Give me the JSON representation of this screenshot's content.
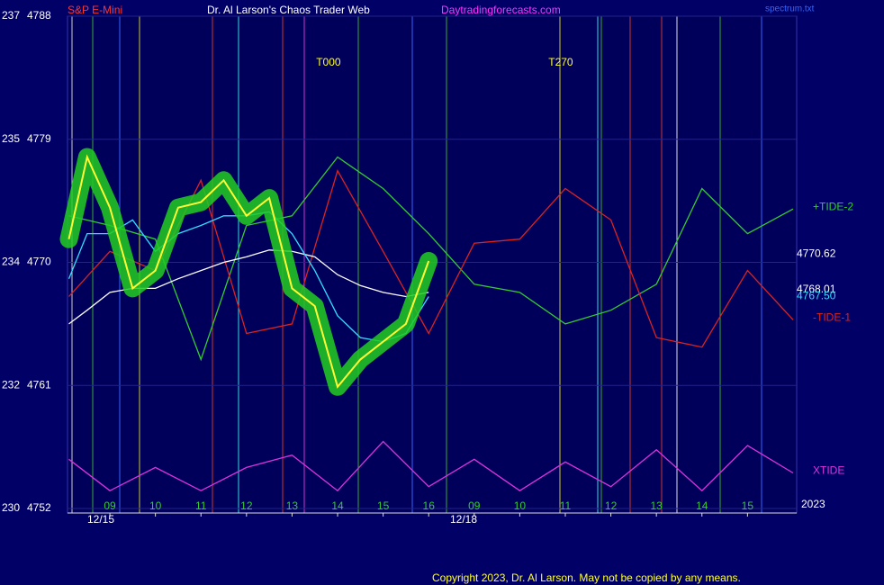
{
  "chart_data": {
    "type": "line",
    "title": "Dr. Al Larson's Chaos Trader Web",
    "instrument": "S&P E-Mini",
    "site": "Daytradingforecasts.com",
    "source_file": "spectrum.txt",
    "copyright": "Copyright 2023, Dr. Al Larson. May not be copied by any means.",
    "xlim": [
      8.07,
      24.08
    ],
    "xticks": [
      {
        "value": 9,
        "label": "09"
      },
      10,
      11,
      12,
      13,
      14,
      15,
      16,
      {
        "value": 17,
        "label": "09"
      },
      {
        "value": 18,
        "label": "10"
      },
      {
        "value": 19,
        "label": "11"
      },
      {
        "value": 20,
        "label": "12"
      },
      {
        "value": 21,
        "label": "13"
      },
      {
        "value": 22,
        "label": "14"
      },
      {
        "value": 23,
        "label": "15"
      }
    ],
    "date_labels": [
      "12/15",
      "12/18",
      "2023"
    ],
    "ylim": [
      4752,
      4788
    ],
    "yticks": [
      4752,
      4761,
      4770,
      4779,
      4788
    ],
    "y2lim": [
      230,
      237
    ],
    "y2ticks": [
      230,
      {
        "value": 231.75,
        "label": "232"
      },
      {
        "value": 233.5,
        "label": "234"
      },
      {
        "value": 235.25,
        "label": "235"
      },
      237
    ],
    "grid": true,
    "time_markers": [
      {
        "value": 13.8,
        "label": "T000"
      },
      {
        "value": 18.9,
        "label": "T270"
      }
    ],
    "series": [
      {
        "color": "#33cc33",
        "values": [
          4773.4,
          4772.7,
          4771.7,
          4762.9,
          4772.7,
          4773.4,
          4777.7,
          4775.4,
          4772.1,
          4768.4,
          4767.8,
          4765.5,
          4766.5,
          4768.4,
          4775.4,
          4772.1,
          4773.9
        ],
        "x": [
          8.1,
          9,
          10,
          11,
          12,
          13,
          14,
          15,
          16,
          17,
          18,
          19,
          20,
          21,
          22,
          23,
          24
        ],
        "name": "+TIDE-2"
      },
      {
        "color": "#dd2222",
        "values": [
          4767.5,
          4770.8,
          4769.4,
          4776.0,
          4764.8,
          4765.5,
          4776.7,
          4770.8,
          4764.8,
          4771.4,
          4771.7,
          4775.4,
          4773.1,
          4764.5,
          4763.8,
          4769.4,
          4765.8
        ],
        "x": [
          8.1,
          9,
          10,
          11,
          12,
          13,
          14,
          15,
          16,
          17,
          18,
          19,
          20,
          21,
          22,
          23,
          24
        ],
        "name": "-TIDE-1"
      },
      {
        "color": "#dd33dd",
        "values": [
          4755.6,
          4753.3,
          4755.0,
          4753.3,
          4755.0,
          4755.9,
          4753.3,
          4756.9,
          4753.6,
          4755.6,
          4753.3,
          4755.4,
          4753.6,
          4756.3,
          4753.3,
          4756.6,
          4754.6
        ],
        "x": [
          8.1,
          9,
          10,
          11,
          12,
          13,
          14,
          15,
          16,
          17,
          18,
          19,
          20,
          21,
          22,
          23,
          24
        ],
        "name": "XTIDE"
      },
      {
        "color": "#ffffff",
        "values": [
          4765.5,
          4766.5,
          4767.8,
          4768.1,
          4768.1,
          4768.8,
          4769.4,
          4770.0,
          4770.4,
          4770.9,
          4770.8,
          4770.4,
          4769.1,
          4768.3,
          4767.8,
          4767.5,
          4767.8
        ],
        "x": [
          8.1,
          8.5,
          9,
          9.5,
          10,
          10.5,
          11,
          11.5,
          12,
          12.5,
          13,
          13.5,
          14,
          14.5,
          15,
          15.5,
          16
        ]
      },
      {
        "color": "#33ddff",
        "values": [
          4768.8,
          4772.1,
          4772.1,
          4773.1,
          4770.8,
          4772.1,
          4772.7,
          4773.4,
          4773.4,
          4773.7,
          4772.1,
          4769.4,
          4766.1,
          4764.5,
          4764.2,
          4764.8,
          4767.5
        ],
        "x": [
          8.1,
          8.5,
          9,
          9.5,
          10,
          10.5,
          11,
          11.5,
          12,
          12.5,
          13,
          13.5,
          14,
          14.5,
          15,
          15.5,
          16
        ]
      },
      {
        "color": "#ffff33",
        "values": [
          4771.7,
          4777.7,
          4774.0,
          4768.1,
          4769.4,
          4774.0,
          4774.4,
          4776.0,
          4773.4,
          4774.7,
          4768.1,
          4766.8,
          4760.9,
          4762.9,
          4764.2,
          4765.5,
          4770.1
        ],
        "x": [
          8.1,
          8.5,
          9,
          9.5,
          10,
          10.5,
          11,
          11.5,
          12,
          12.5,
          13,
          13.5,
          14,
          14.5,
          15,
          15.5,
          16
        ],
        "glow": true
      }
    ],
    "price_labels": [
      {
        "value": 4770.62,
        "label": "4770.62",
        "color": "#ffffff"
      },
      {
        "value": 4768.01,
        "label": "4768.01",
        "color": "#ffffff"
      },
      {
        "value": 4767.5,
        "label": "4767.50",
        "color": "#33ddff"
      }
    ]
  }
}
